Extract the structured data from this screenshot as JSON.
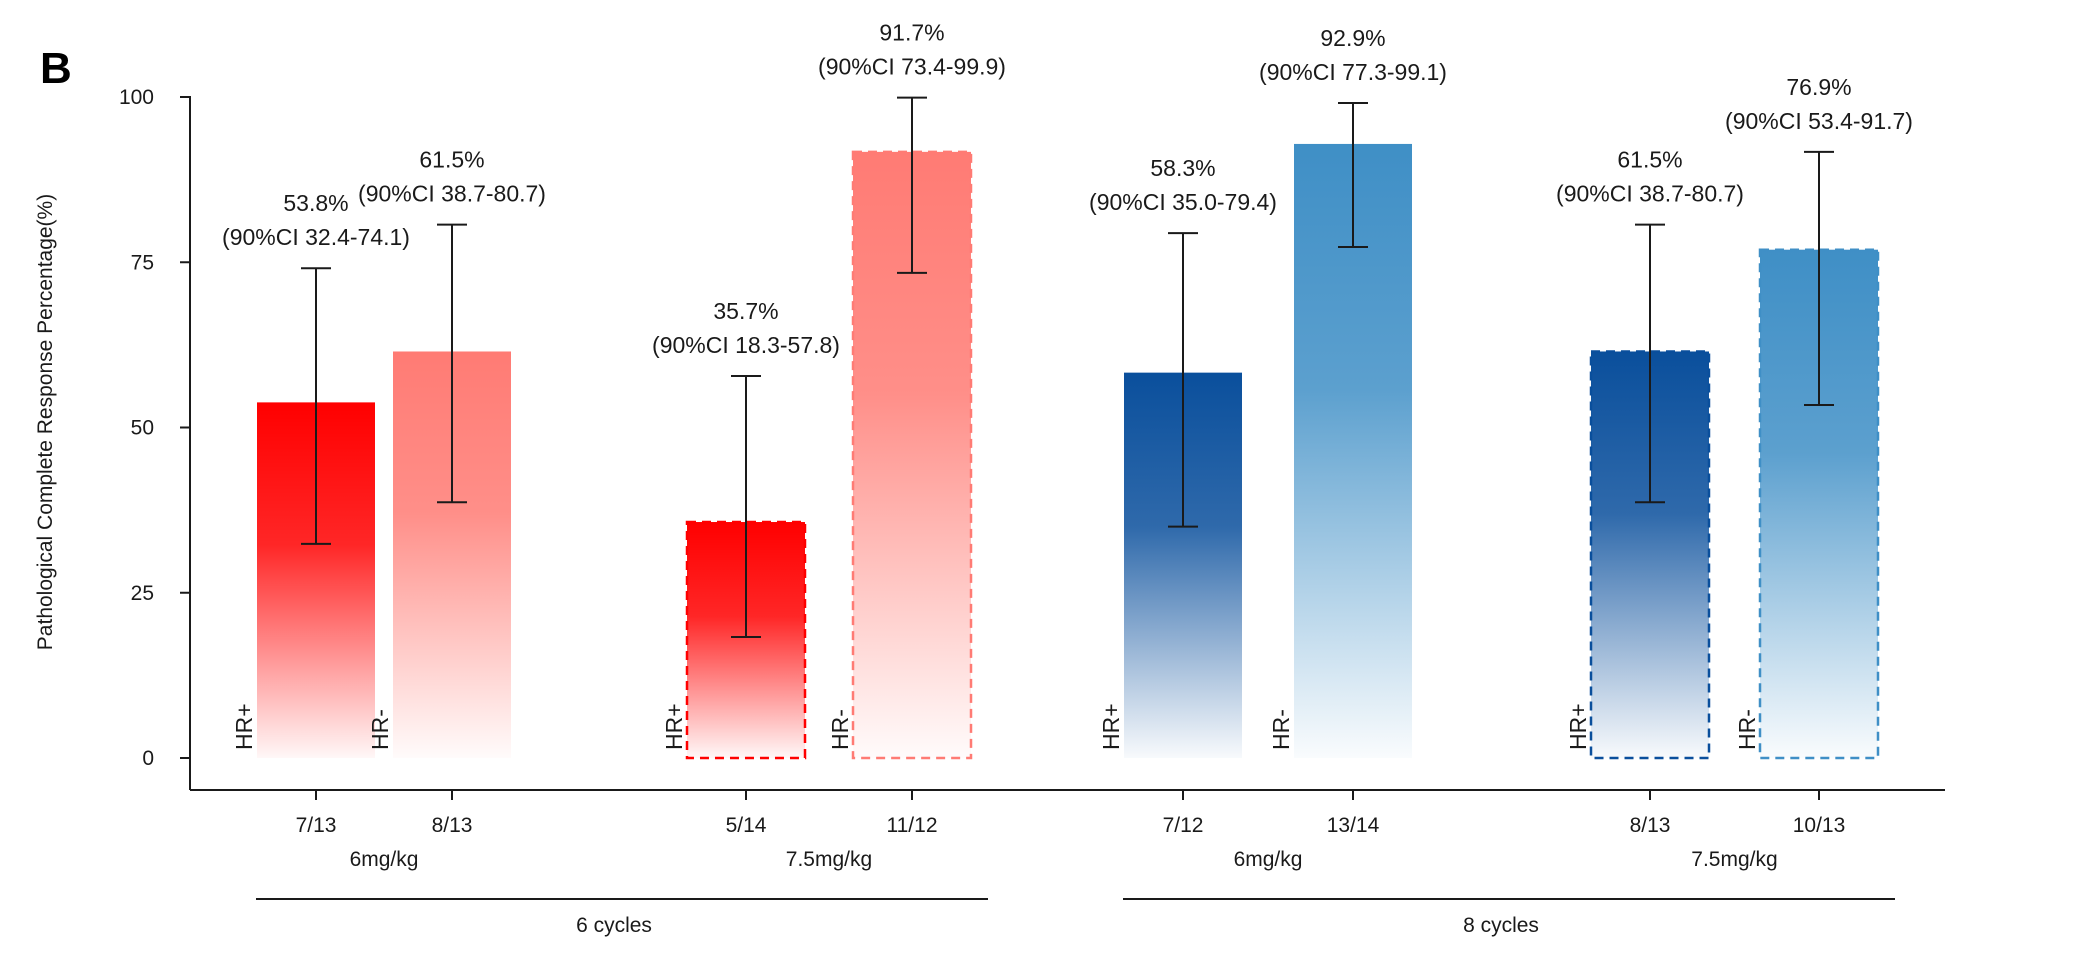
{
  "panel_label": "B",
  "chart_data": {
    "type": "bar",
    "ylabel": "Pathological Complete Response Percentage(%)",
    "ylim": [
      0,
      100
    ],
    "yticks": [
      "0",
      "25",
      "50",
      "75",
      "100"
    ],
    "colors": {
      "red_dark": "#ff0000",
      "red_light": "#ff7b74",
      "blue_dark": "#0a4f9c",
      "blue_light": "#3f8fc6",
      "error_bar": "#1a1a1a"
    },
    "groups": [
      {
        "label": "6 cycles",
        "doses": [
          {
            "label": "6mg/kg",
            "bars": [
              {
                "subgroup": "HR+",
                "fraction": "7/13",
                "value": 53.8,
                "ci": [
                  32.4,
                  74.1
                ],
                "pct_label": "53.8%",
                "ci_label": "(90%CI 32.4-74.1)",
                "color": "red_dark",
                "style": "solid"
              },
              {
                "subgroup": "HR-",
                "fraction": "8/13",
                "value": 61.5,
                "ci": [
                  38.7,
                  80.7
                ],
                "pct_label": "61.5%",
                "ci_label": "(90%CI 38.7-80.7)",
                "color": "red_light",
                "style": "solid"
              }
            ]
          },
          {
            "label": "7.5mg/kg",
            "bars": [
              {
                "subgroup": "HR+",
                "fraction": "5/14",
                "value": 35.7,
                "ci": [
                  18.3,
                  57.8
                ],
                "pct_label": "35.7%",
                "ci_label": "(90%CI 18.3-57.8)",
                "color": "red_dark",
                "style": "dashed"
              },
              {
                "subgroup": "HR-",
                "fraction": "11/12",
                "value": 91.7,
                "ci": [
                  73.4,
                  99.9
                ],
                "pct_label": "91.7%",
                "ci_label": "(90%CI 73.4-99.9)",
                "color": "red_light",
                "style": "dashed"
              }
            ]
          }
        ]
      },
      {
        "label": "8 cycles",
        "doses": [
          {
            "label": "6mg/kg",
            "bars": [
              {
                "subgroup": "HR+",
                "fraction": "7/12",
                "value": 58.3,
                "ci": [
                  35.0,
                  79.4
                ],
                "pct_label": "58.3%",
                "ci_label": "(90%CI 35.0-79.4)",
                "color": "blue_dark",
                "style": "solid"
              },
              {
                "subgroup": "HR-",
                "fraction": "13/14",
                "value": 92.9,
                "ci": [
                  77.3,
                  99.1
                ],
                "pct_label": "92.9%",
                "ci_label": "(90%CI 77.3-99.1)",
                "color": "blue_light",
                "style": "solid"
              }
            ]
          },
          {
            "label": "7.5mg/kg",
            "bars": [
              {
                "subgroup": "HR+",
                "fraction": "8/13",
                "value": 61.5,
                "ci": [
                  38.7,
                  80.7
                ],
                "pct_label": "61.5%",
                "ci_label": "(90%CI 38.7-80.7)",
                "color": "blue_dark",
                "style": "dashed"
              },
              {
                "subgroup": "HR-",
                "fraction": "10/13",
                "value": 76.9,
                "ci": [
                  53.4,
                  91.7
                ],
                "pct_label": "76.9%",
                "ci_label": "(90%CI 53.4-91.7)",
                "color": "blue_light",
                "style": "dashed"
              }
            ]
          }
        ]
      }
    ]
  }
}
